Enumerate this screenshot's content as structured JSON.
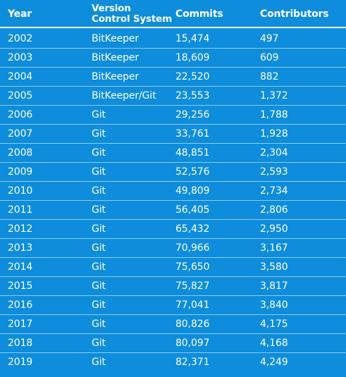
{
  "header": {
    "year": "Year",
    "vcs_line1": "Version",
    "vcs_line2": "Control System",
    "commits": "Commits",
    "contributors": "Contributors"
  },
  "rows": [
    {
      "year": "2002",
      "vcs": "BitKeeper",
      "commits": "15,474",
      "contributors": "497"
    },
    {
      "year": "2003",
      "vcs": "BitKeeper",
      "commits": "18,609",
      "contributors": "609"
    },
    {
      "year": "2004",
      "vcs": "BitKeeper",
      "commits": "22,520",
      "contributors": "882"
    },
    {
      "year": "2005",
      "vcs": "BitKeeper/Git",
      "commits": "23,553",
      "contributors": "1,372"
    },
    {
      "year": "2006",
      "vcs": "Git",
      "commits": "29,256",
      "contributors": "1,788"
    },
    {
      "year": "2007",
      "vcs": "Git",
      "commits": "33,761",
      "contributors": "1,928"
    },
    {
      "year": "2008",
      "vcs": "Git",
      "commits": "48,851",
      "contributors": "2,304"
    },
    {
      "year": "2009",
      "vcs": "Git",
      "commits": "52,576",
      "contributors": "2,593"
    },
    {
      "year": "2010",
      "vcs": "Git",
      "commits": "49,809",
      "contributors": "2,734"
    },
    {
      "year": "2011",
      "vcs": "Git",
      "commits": "56,405",
      "contributors": "2,806"
    },
    {
      "year": "2012",
      "vcs": "Git",
      "commits": "65,432",
      "contributors": "2,950"
    },
    {
      "year": "2013",
      "vcs": "Git",
      "commits": "70,966",
      "contributors": "3,167"
    },
    {
      "year": "2014",
      "vcs": "Git",
      "commits": "75,650",
      "contributors": "3,580"
    },
    {
      "year": "2015",
      "vcs": "Git",
      "commits": "75,827",
      "contributors": "3,817"
    },
    {
      "year": "2016",
      "vcs": "Git",
      "commits": "77,041",
      "contributors": "3,840"
    },
    {
      "year": "2017",
      "vcs": "Git",
      "commits": "80,826",
      "contributors": "4,175"
    },
    {
      "year": "2018",
      "vcs": "Git",
      "commits": "80,097",
      "contributors": "4,168"
    },
    {
      "year": "2019",
      "vcs": "Git",
      "commits": "82,371",
      "contributors": "4,249"
    }
  ],
  "colors": {
    "background": "#0d8ddb",
    "text": "#ffffff"
  }
}
